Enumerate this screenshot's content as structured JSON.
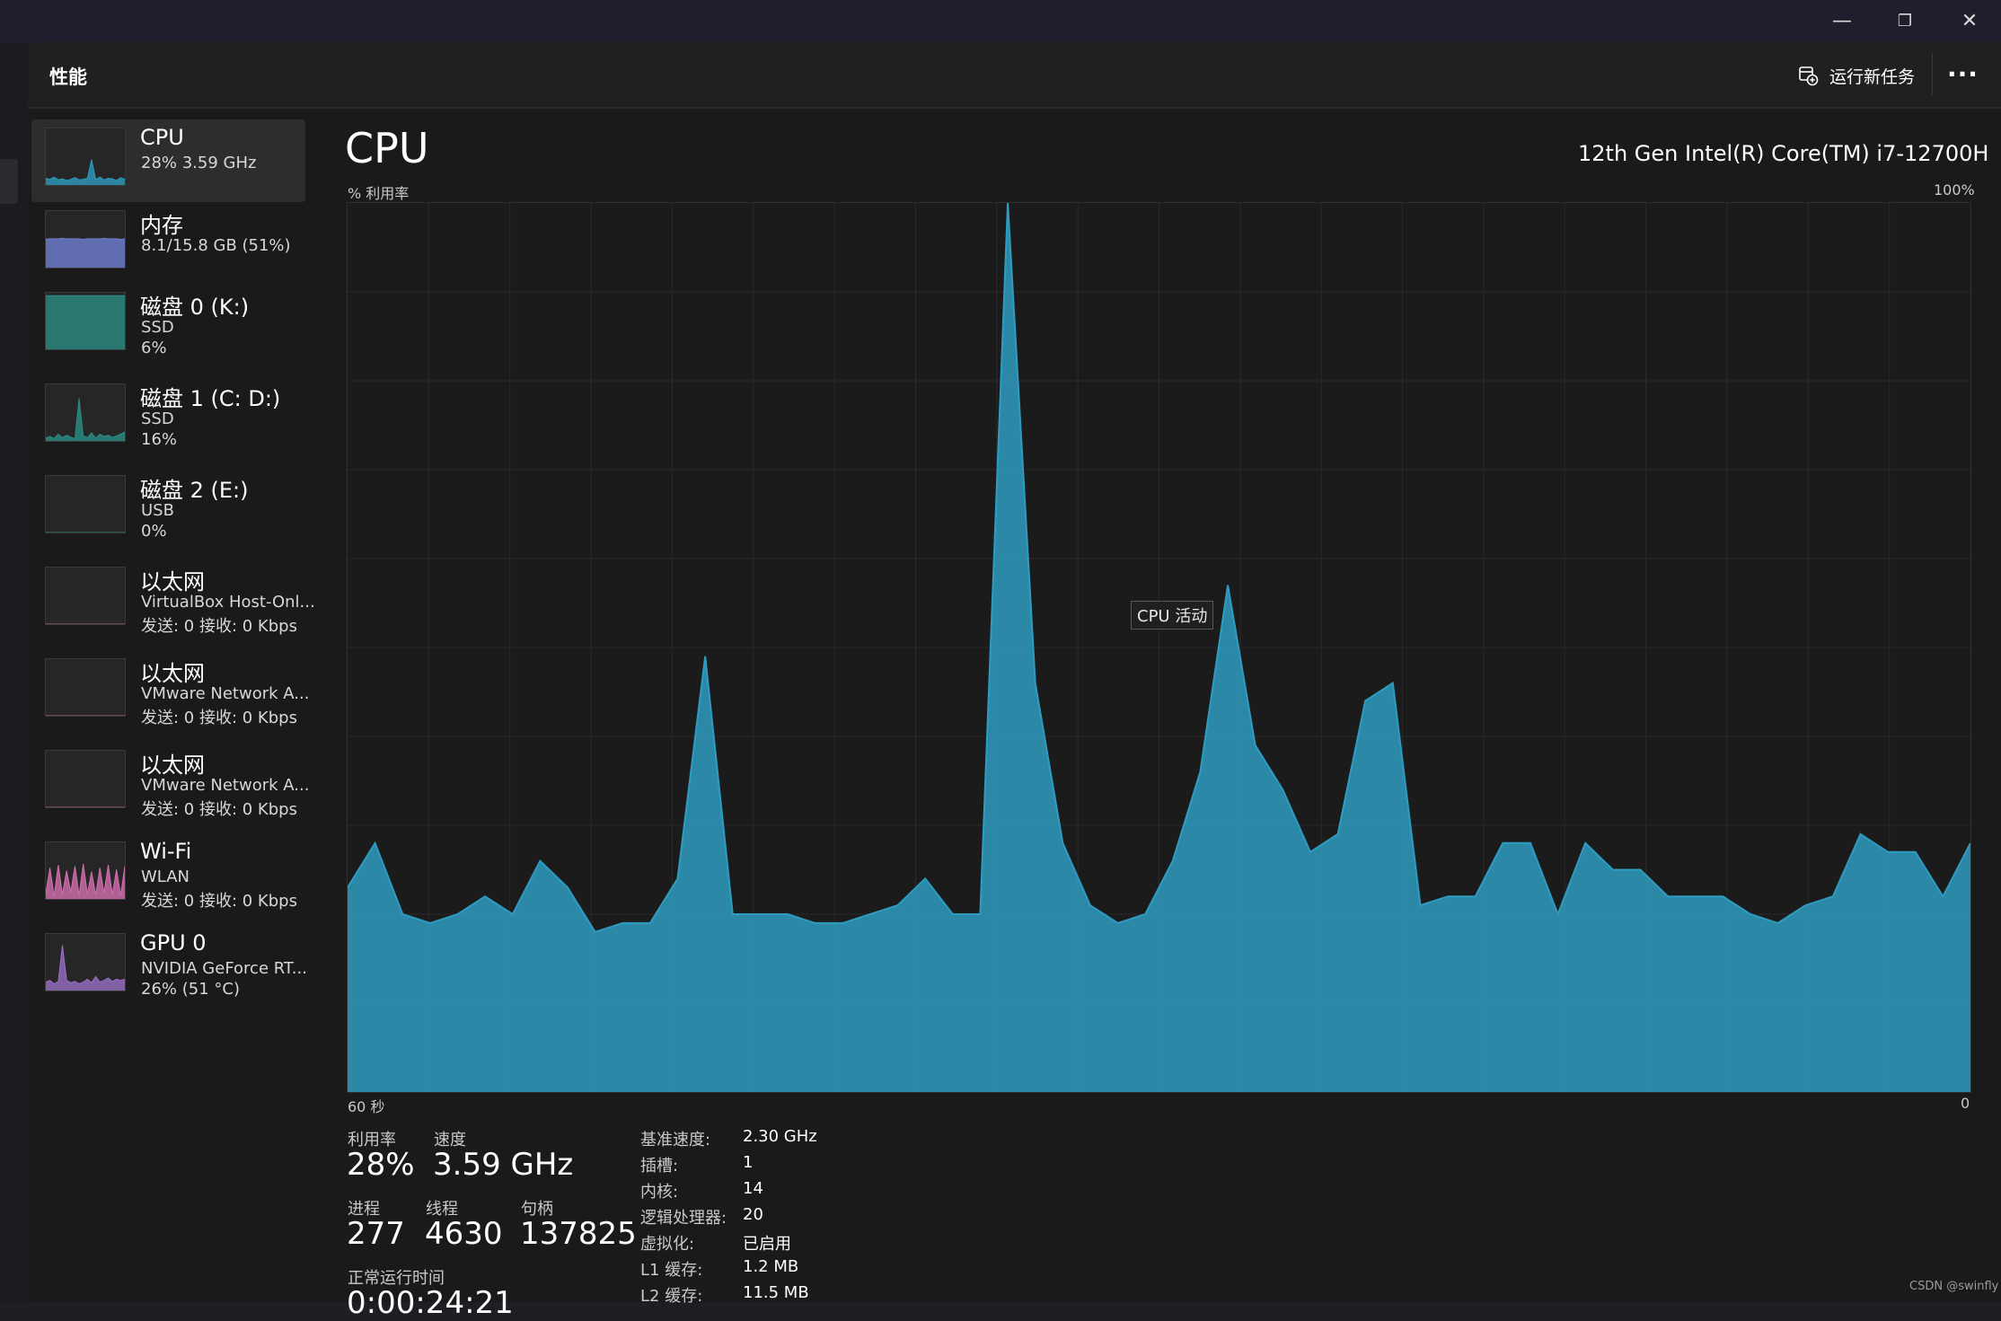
{
  "window": {
    "minimize_glyph": "—",
    "restore_glyph": "❐",
    "close_glyph": "✕"
  },
  "header": {
    "title": "性能",
    "run_task_label": "运行新任务",
    "more_glyph": "···"
  },
  "sidebar": {
    "items": [
      {
        "title": "CPU",
        "line2": "28%  3.59 GHz",
        "line3": "",
        "color": "#2e9cc0",
        "series": [
          12,
          10,
          14,
          9,
          11,
          8,
          10,
          13,
          9,
          10,
          12,
          45,
          10,
          14,
          9,
          12,
          11,
          8,
          13,
          10
        ]
      },
      {
        "title": "内存",
        "line2": "8.1/15.8 GB (51%)",
        "line3": "",
        "color": "#6f7fd1",
        "series": [
          50,
          51,
          51,
          51,
          52,
          51,
          51,
          51,
          51,
          50,
          51,
          51,
          51,
          51,
          52,
          51,
          51,
          51,
          50,
          51
        ]
      },
      {
        "title": "磁盘 0 (K:)",
        "line2": "SSD",
        "line3": "6%",
        "color": "#2a8f86",
        "series": [
          95,
          95,
          95,
          95,
          95,
          95,
          95,
          95,
          95,
          95,
          95,
          95,
          95,
          95,
          95,
          95,
          95,
          95,
          95,
          95
        ]
      },
      {
        "title": "磁盘 1 (C: D:)",
        "line2": "SSD",
        "line3": "16%",
        "color": "#2a8f86",
        "series": [
          5,
          8,
          4,
          12,
          6,
          10,
          7,
          4,
          75,
          9,
          6,
          14,
          5,
          12,
          8,
          10,
          6,
          9,
          12,
          16
        ]
      },
      {
        "title": "磁盘 2 (E:)",
        "line2": "USB",
        "line3": "0%",
        "color": "#2a8f86",
        "series": [
          0,
          0,
          0,
          0,
          0,
          0,
          0,
          0,
          0,
          0,
          0,
          0,
          0,
          0,
          0,
          0,
          0,
          0,
          0,
          0
        ]
      },
      {
        "title": "以太网",
        "line2": "VirtualBox Host-Onl...",
        "line3": "发送: 0 接收: 0 Kbps",
        "color": "#c2649c",
        "series": [
          0,
          0,
          0,
          0,
          0,
          0,
          0,
          0,
          0,
          0,
          0,
          0,
          0,
          0,
          0,
          0,
          0,
          0,
          0,
          0
        ]
      },
      {
        "title": "以太网",
        "line2": "VMware Network A...",
        "line3": "发送: 0 接收: 0 Kbps",
        "color": "#c2649c",
        "series": [
          0,
          0,
          0,
          0,
          0,
          0,
          0,
          0,
          0,
          0,
          0,
          0,
          0,
          0,
          0,
          0,
          0,
          0,
          0,
          0
        ]
      },
      {
        "title": "以太网",
        "line2": "VMware Network A...",
        "line3": "发送: 0 接收: 0 Kbps",
        "color": "#c2649c",
        "series": [
          0,
          0,
          0,
          0,
          0,
          0,
          0,
          0,
          0,
          0,
          0,
          0,
          0,
          0,
          0,
          0,
          0,
          0,
          0,
          0
        ]
      },
      {
        "title": "Wi-Fi",
        "line2": "WLAN",
        "line3": "发送: 0 接收: 0 Kbps",
        "color": "#d56fb0",
        "series": [
          10,
          55,
          5,
          60,
          8,
          50,
          12,
          58,
          6,
          62,
          9,
          48,
          7,
          55,
          10,
          60,
          8,
          52,
          6,
          58
        ]
      },
      {
        "title": "GPU 0",
        "line2": "NVIDIA GeForce RT...",
        "line3": "26% (51 °C)",
        "color": "#9a6fc7",
        "series": [
          15,
          18,
          12,
          16,
          80,
          18,
          14,
          16,
          12,
          15,
          20,
          14,
          25,
          15,
          18,
          22,
          16,
          20,
          18,
          20
        ]
      }
    ]
  },
  "main": {
    "title": "CPU",
    "model": "12th Gen Intel(R) Core(TM) i7-12700H",
    "util_label": "% 利用率",
    "max_label": "100%",
    "x_left": "60 秒",
    "x_right": "0",
    "tooltip": "CPU 活动",
    "accent_color": "#2e9cc0",
    "cpu_history_percent": [
      23,
      28,
      20,
      19,
      20,
      22,
      20,
      26,
      23,
      18,
      19,
      19,
      24,
      49,
      20,
      20,
      20,
      19,
      19,
      20,
      21,
      24,
      20,
      20,
      100,
      46,
      28,
      21,
      19,
      20,
      26,
      36,
      57,
      39,
      34,
      27,
      29,
      44,
      46,
      21,
      22,
      22,
      28,
      28,
      20,
      28,
      25,
      25,
      22,
      22,
      22,
      20,
      19,
      21,
      22,
      29,
      27,
      27,
      22,
      28
    ]
  },
  "stats": {
    "util_label": "利用率",
    "util_value": "28%",
    "speed_label": "速度",
    "speed_value": "3.59 GHz",
    "proc_label": "进程",
    "proc_value": "277",
    "thread_label": "线程",
    "thread_value": "4630",
    "handle_label": "句柄",
    "handle_value": "137825",
    "uptime_label": "正常运行时间",
    "uptime_value": "0:00:24:21"
  },
  "specs": [
    {
      "label": "基准速度:",
      "value": "2.30 GHz"
    },
    {
      "label": "插槽:",
      "value": "1"
    },
    {
      "label": "内核:",
      "value": "14"
    },
    {
      "label": "逻辑处理器:",
      "value": "20"
    },
    {
      "label": "虚拟化:",
      "value": "已启用"
    },
    {
      "label": "L1 缓存:",
      "value": "1.2 MB"
    },
    {
      "label": "L2 缓存:",
      "value": "11.5 MB"
    }
  ],
  "watermark": "CSDN @swinfly"
}
